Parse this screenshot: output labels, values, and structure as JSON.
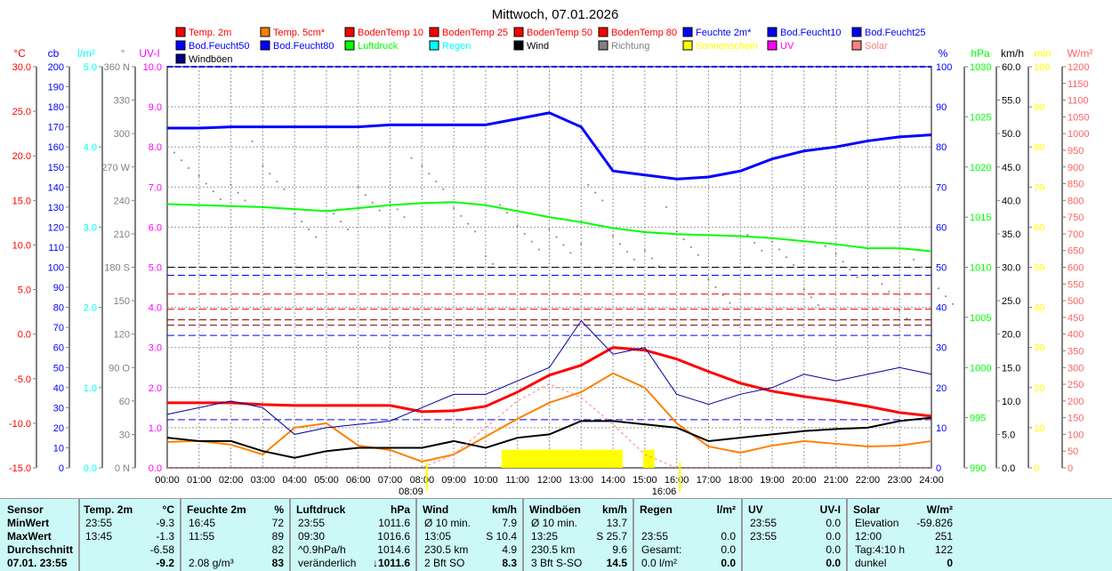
{
  "chart_data": {
    "type": "line",
    "title": "Mittwoch, 07.01.2026",
    "x_hours": [
      0,
      1,
      2,
      3,
      4,
      5,
      6,
      7,
      8,
      9,
      10,
      11,
      12,
      13,
      14,
      15,
      16,
      17,
      18,
      19,
      20,
      21,
      22,
      23,
      24
    ],
    "x_tick_labels": [
      "00:00",
      "01:00",
      "02:00",
      "03:00",
      "04:00",
      "05:00",
      "06:00",
      "07:00",
      "08:00",
      "09:00",
      "10:00",
      "11:00",
      "12:00",
      "13:00",
      "14:00",
      "15:00",
      "16:00",
      "17:00",
      "18:00",
      "19:00",
      "20:00",
      "21:00",
      "22:00",
      "23:00",
      "24:00"
    ],
    "sunrise": {
      "label": "08:09",
      "hour": 8.15
    },
    "sunset": {
      "label": "16:06",
      "hour": 16.1
    },
    "axes": {
      "left": [
        {
          "unit": "°C",
          "color": "#ff0000",
          "min": -15,
          "max": 30,
          "labels": [
            "30.0",
            "25.0",
            "20.0",
            "15.0",
            "10.0",
            "5.0",
            "0.0",
            "-5.0",
            "-10.0",
            "-15.0"
          ]
        },
        {
          "unit": "cb",
          "color": "#0000ff",
          "min": 0,
          "max": 200,
          "labels": [
            "200",
            "190",
            "180",
            "170",
            "160",
            "150",
            "140",
            "130",
            "120",
            "110",
            "100",
            "90",
            "80",
            "70",
            "60",
            "50",
            "40",
            "30",
            "20",
            "10",
            "0"
          ]
        },
        {
          "unit": "l/m²",
          "color": "#00ffff",
          "min": 0,
          "max": 5,
          "labels": [
            "5.0",
            "4.0",
            "3.0",
            "2.0",
            "1.0",
            "0.0"
          ]
        },
        {
          "unit": "°",
          "color": "#808080",
          "min": 0,
          "max": 360,
          "labels": [
            "360 N",
            "330",
            "300",
            "270 W",
            "240",
            "210",
            "180 S",
            "150",
            "120",
            "90  O",
            "60",
            "30",
            "0  N"
          ]
        },
        {
          "unit": "UV-I",
          "color": "#ff00ff",
          "min": 0,
          "max": 10,
          "labels": [
            "10.0",
            "9.0",
            "8.0",
            "7.0",
            "6.0",
            "5.0",
            "4.0",
            "3.0",
            "2.0",
            "1.0",
            "0.0"
          ]
        }
      ],
      "right": [
        {
          "unit": "%",
          "color": "#0000ff",
          "min": 0,
          "max": 100,
          "labels": [
            "100",
            "90",
            "80",
            "70",
            "60",
            "50",
            "40",
            "30",
            "20",
            "10",
            "0"
          ]
        },
        {
          "unit": "hPa",
          "color": "#00ff00",
          "min": 990,
          "max": 1030,
          "labels": [
            "1030",
            "1025",
            "1020",
            "1015",
            "1010",
            "1005",
            "1000",
            "995",
            "990"
          ]
        },
        {
          "unit": "km/h",
          "color": "#000000",
          "min": 0,
          "max": 60,
          "labels": [
            "60.0",
            "55.0",
            "50.0",
            "45.0",
            "40.0",
            "35.0",
            "30.0",
            "25.0",
            "20.0",
            "15.0",
            "10.0",
            "5.0",
            "0.0"
          ]
        },
        {
          "unit": "min",
          "color": "#ffff00",
          "min": 0,
          "max": 100,
          "labels": [
            "100",
            "90",
            "80",
            "70",
            "60",
            "50",
            "40",
            "30",
            "20",
            "10",
            "0"
          ]
        },
        {
          "unit": "W/m²",
          "color": "#ff6060",
          "min": 0,
          "max": 1200,
          "labels": [
            "1200",
            "1150",
            "1100",
            "1050",
            "1000",
            "950",
            "900",
            "850",
            "800",
            "750",
            "700",
            "650",
            "600",
            "550",
            "500",
            "450",
            "400",
            "350",
            "300",
            "250",
            "200",
            "150",
            "100",
            "50",
            "0"
          ]
        }
      ]
    },
    "legend": [
      {
        "name": "Temp. 2m",
        "color": "#ff0000",
        "text": "#ff0000"
      },
      {
        "name": "Temp. 5cm*",
        "color": "#ff8000",
        "text": "#ff0000"
      },
      {
        "name": "BodenTemp 10",
        "color": "#ff0000",
        "text": "#ff0000"
      },
      {
        "name": "BodenTemp 25",
        "color": "#ff0000",
        "text": "#ff0000"
      },
      {
        "name": "BodenTemp 50",
        "color": "#ff0000",
        "text": "#ff0000"
      },
      {
        "name": "BodenTemp 80",
        "color": "#ff0000",
        "text": "#ff0000"
      },
      {
        "name": "Feuchte 2m*",
        "color": "#0000ff",
        "text": "#0000ff"
      },
      {
        "name": "Bod.Feucht10",
        "color": "#0000ff",
        "text": "#0000ff"
      },
      {
        "name": "Bod.Feucht25",
        "color": "#0000ff",
        "text": "#0000ff"
      },
      {
        "name": "Bod.Feucht50",
        "color": "#0000ff",
        "text": "#0000ff"
      },
      {
        "name": "Bod.Feucht80",
        "color": "#0000ff",
        "text": "#0000ff"
      },
      {
        "name": "Luftdruck",
        "color": "#00ff00",
        "text": "#00ff00"
      },
      {
        "name": "Regen",
        "color": "#00ffff",
        "text": "#00ffff"
      },
      {
        "name": "Wind",
        "color": "#000000",
        "text": "#000000"
      },
      {
        "name": "Richtung",
        "color": "#808080",
        "text": "#808080"
      },
      {
        "name": "Sonnenschein",
        "color": "#ffff00",
        "text": "#ffff00"
      },
      {
        "name": "UV",
        "color": "#ff00ff",
        "text": "#ff00ff"
      },
      {
        "name": "Solar",
        "color": "#ff8080",
        "text": "#ff8080"
      },
      {
        "name": "Windböen",
        "color": "#000080",
        "text": "#000000"
      }
    ],
    "series": [
      {
        "name": "Temp. 2m",
        "axis": "°C",
        "color": "#ff0000",
        "width": 3,
        "values": [
          -7.7,
          -7.7,
          -7.7,
          -7.9,
          -8.0,
          -8.0,
          -8.0,
          -8.0,
          -8.7,
          -8.6,
          -8.1,
          -6.5,
          -4.6,
          -3.5,
          -1.5,
          -1.8,
          -2.8,
          -4.2,
          -5.5,
          -6.4,
          -7.0,
          -7.5,
          -8.1,
          -8.8,
          -9.2
        ]
      },
      {
        "name": "Temp. 5cm*",
        "axis": "°C",
        "color": "#ff8000",
        "width": 2,
        "values": [
          -12.1,
          -12.0,
          -12.4,
          -13.5,
          -10.5,
          -10.0,
          -12.5,
          -13.0,
          -14.3,
          -13.5,
          -11.5,
          -9.5,
          -7.7,
          -6.5,
          -4.4,
          -6.0,
          -10.0,
          -12.6,
          -13.3,
          -12.5,
          -12.0,
          -12.3,
          -12.6,
          -12.5,
          -12.0
        ]
      },
      {
        "name": "Feuchte 2m*",
        "axis": "%",
        "color": "#0000ff",
        "width": 3,
        "values": [
          84.7,
          84.7,
          85,
          85,
          85,
          85,
          85,
          85.5,
          85.5,
          85.5,
          85.5,
          87,
          88.5,
          85,
          74,
          73,
          72,
          72.5,
          74,
          77,
          79,
          80,
          81.5,
          82.5,
          83
        ]
      },
      {
        "name": "Luftdruck",
        "axis": "hPa",
        "color": "#00ff00",
        "width": 2,
        "values": [
          1016.3,
          1016.2,
          1016.1,
          1016.0,
          1015.8,
          1015.6,
          1015.9,
          1016.2,
          1016.4,
          1016.5,
          1016.2,
          1015.6,
          1015.0,
          1014.5,
          1013.9,
          1013.5,
          1013.3,
          1013.2,
          1013.1,
          1012.9,
          1012.6,
          1012.3,
          1011.9,
          1011.9,
          1011.6
        ]
      },
      {
        "name": "Windböen",
        "axis": "km/h",
        "color": "#0000a0",
        "width": 1,
        "values": [
          8,
          9,
          10,
          9,
          5,
          6,
          6.5,
          7,
          9,
          11,
          11,
          13,
          15,
          22,
          17,
          18,
          11,
          9.5,
          11,
          12,
          14,
          13,
          14,
          15,
          14
        ]
      },
      {
        "name": "Wind",
        "axis": "km/h",
        "color": "#000000",
        "width": 2,
        "values": [
          4.5,
          4,
          4,
          2.5,
          1.5,
          2.5,
          3,
          3,
          3,
          4,
          3,
          4.5,
          5,
          7,
          7,
          6.5,
          6,
          4,
          4.5,
          5,
          5.5,
          5.8,
          6,
          7,
          7.5
        ]
      },
      {
        "name": "Solar",
        "axis": "W/m²",
        "color": "#ff8080",
        "width": 1,
        "dashed": true,
        "values": [
          0,
          0,
          0,
          0,
          0,
          0,
          0,
          0,
          0,
          40,
          120,
          200,
          251,
          210,
          130,
          40,
          0,
          0,
          0,
          0,
          0,
          0,
          0,
          0,
          0
        ]
      }
    ],
    "richtung_deg": [
      260,
      255,
      270,
      250,
      230,
      200,
      240,
      250,
      245,
      230,
      210,
      200,
      220,
      230,
      200,
      210,
      190,
      170,
      180,
      190,
      170,
      165,
      175,
      160,
      150
    ],
    "constant_lines": [
      {
        "name": "BodenTemp 10",
        "axis": "°C",
        "value": 4.5,
        "color": "#ff0000"
      },
      {
        "name": "BodenTemp 25",
        "axis": "°C",
        "value": 2.8,
        "color": "#ff0000"
      },
      {
        "name": "BodenTemp 50",
        "axis": "°C",
        "value": 1.6,
        "color": "#800000"
      },
      {
        "name": "BodenTemp 80",
        "axis": "°C",
        "value": 1.0,
        "color": "#800000"
      },
      {
        "name": "Bod.Feucht10",
        "axis": "%",
        "value": 48,
        "color": "#0000ff"
      },
      {
        "name": "Bod.Feucht25",
        "axis": "%",
        "value": 33,
        "color": "#0000ff"
      },
      {
        "name": "Bod.Feucht50",
        "axis": "%",
        "value": 12,
        "color": "#0000ff"
      },
      {
        "name": "Bod.Feucht80",
        "axis": "%",
        "value": 50,
        "color": "#000000"
      }
    ],
    "sunshine_min": [
      {
        "from": 10.5,
        "to": 14.3,
        "value": 4.5
      },
      {
        "from": 14.95,
        "to": 15.3,
        "value": 4.5
      }
    ]
  },
  "table": {
    "columns": [
      {
        "h1": "Temp. 2m",
        "h2": "°C",
        "rows": [
          [
            "23:55",
            "-9.3"
          ],
          [
            "13:45",
            "-1.3"
          ],
          [
            "",
            "-6.58"
          ],
          [
            "",
            "-9.2"
          ]
        ]
      },
      {
        "h1": "Feuchte 2m",
        "h2": "%",
        "rows": [
          [
            "16:45",
            "72"
          ],
          [
            "11:55",
            "89"
          ],
          [
            "",
            "82"
          ],
          [
            "2.08 g/m³",
            "83"
          ]
        ]
      },
      {
        "h1": "Luftdruck",
        "h2": "hPa",
        "rows": [
          [
            "23:55",
            "1011.6"
          ],
          [
            "09:30",
            "1016.6"
          ],
          [
            "^0.9hPa/h",
            "1014.6"
          ],
          [
            "veränderlich",
            "↓1011.6"
          ]
        ]
      },
      {
        "h1": "Wind",
        "h2": "km/h",
        "rows": [
          [
            "Ø 10 min.",
            "7.9"
          ],
          [
            "13:05",
            "S 10.4"
          ],
          [
            "230.5 km",
            "4.9"
          ],
          [
            "2 Bft SO",
            "8.3"
          ]
        ]
      },
      {
        "h1": "Windböen",
        "h2": "km/h",
        "rows": [
          [
            "Ø 10 min.",
            "13.7"
          ],
          [
            "13:25",
            "S 25.7"
          ],
          [
            "230.5 km",
            "9.6"
          ],
          [
            "3 Bft S-SO",
            "14.5"
          ]
        ]
      },
      {
        "h1": "Regen",
        "h2": "l/m²",
        "rows": [
          [
            "",
            ""
          ],
          [
            "23:55",
            "0.0"
          ],
          [
            "Gesamt:",
            "0.0"
          ],
          [
            "0.0 l/m²",
            "0.0"
          ]
        ]
      },
      {
        "h1": "UV",
        "h2": "UV-I",
        "rows": [
          [
            "23:55",
            "0.0"
          ],
          [
            "23:55",
            "0.0"
          ],
          [
            "",
            "0.0"
          ],
          [
            "",
            "0.0"
          ]
        ]
      },
      {
        "h1": "Solar",
        "h2": "W/m²",
        "rows": [
          [
            "Elevation",
            "-59.826"
          ],
          [
            "12:00",
            "251"
          ],
          [
            "Tag:4:10 h",
            "122"
          ],
          [
            "dunkel",
            "0"
          ]
        ]
      }
    ],
    "row_labels": [
      "Sensor",
      "MinWert",
      "MaxWert",
      "Durchschnitt",
      "07.01. 23:55"
    ]
  }
}
